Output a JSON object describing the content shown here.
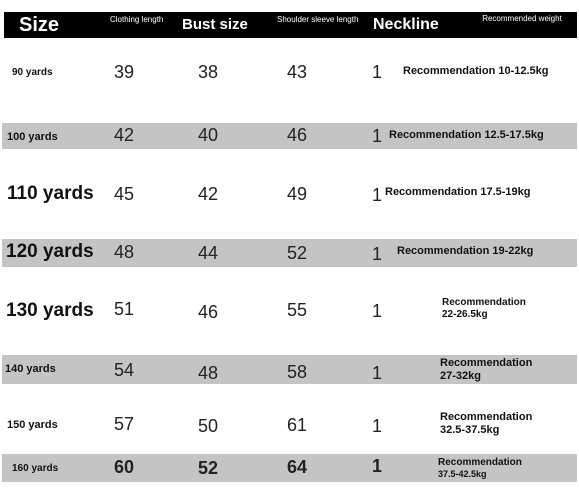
{
  "header": {
    "size": "Size",
    "clothing_length": "Clothing length",
    "bust": "Bust size",
    "shoulder": "Shoulder sleeve length",
    "neckline": "Neckline",
    "weight": "Recommended weight"
  },
  "rows": [
    {
      "size": "90 yards",
      "length": "39",
      "bust": "38",
      "shoulder": "43",
      "neckline": "1",
      "weight": "Recommendation 10-12.5kg"
    },
    {
      "size": "100 yards",
      "length": "42",
      "bust": "40",
      "shoulder": "46",
      "neckline": "1",
      "weight": "Recommendation 12.5-17.5kg"
    },
    {
      "size": "110 yards",
      "length": "45",
      "bust": "42",
      "shoulder": "49",
      "neckline": "1",
      "weight": "Recommendation 17.5-19kg"
    },
    {
      "size": "120 yards",
      "length": "48",
      "bust": "44",
      "shoulder": "52",
      "neckline": "1",
      "weight": "Recommendation 19-22kg"
    },
    {
      "size": "130 yards",
      "length": "51",
      "bust": "46",
      "shoulder": "55",
      "neckline": "1",
      "weight_line1": "Recommendation",
      "weight_line2": "22-26.5kg"
    },
    {
      "size": "140 yards",
      "length": "54",
      "bust": "48",
      "shoulder": "58",
      "neckline": "1",
      "weight_line1": "Recommendation",
      "weight_line2": "27-32kg"
    },
    {
      "size": "150 yards",
      "length": "57",
      "bust": "50",
      "shoulder": "61",
      "neckline": "1",
      "weight_line1": "Recommendation",
      "weight_line2": "32.5-37.5kg"
    },
    {
      "size": "160 yards",
      "length": "60",
      "bust": "52",
      "shoulder": "64",
      "neckline": "1",
      "weight_line1": "Recommendation",
      "weight_line2": "37.5-42.5kg"
    }
  ]
}
